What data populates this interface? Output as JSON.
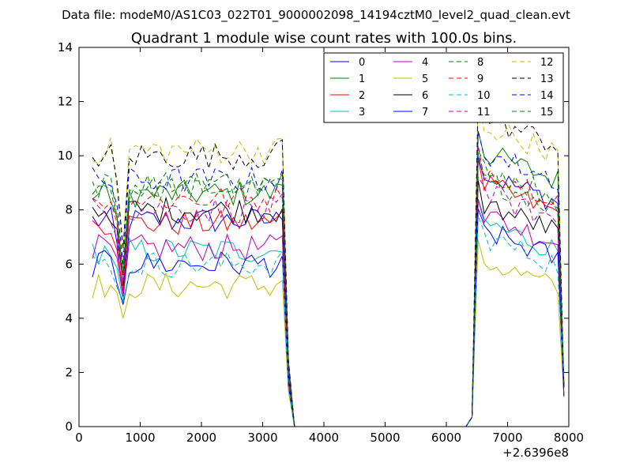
{
  "chart_data": {
    "type": "line",
    "suptitle": "Data file: modeM0/AS1C03_022T01_9000002098_14194cztM0_level2_quad_clean.evt",
    "title": "Quadrant 1 module wise count rates with 100.0s bins.",
    "xlabel": "",
    "ylabel": "",
    "x_offset_label": "+2.6396e8",
    "xlim": [
      0,
      8000
    ],
    "ylim": [
      0,
      14
    ],
    "xticks": [
      0,
      1000,
      2000,
      3000,
      4000,
      5000,
      6000,
      7000,
      8000
    ],
    "xtick_labels": [
      "0",
      "1000",
      "2000",
      "3000",
      "4000",
      "5000",
      "6000",
      "7000",
      "8000"
    ],
    "yticks": [
      0,
      2,
      4,
      6,
      8,
      10,
      12,
      14
    ],
    "ytick_labels": [
      "0",
      "2",
      "4",
      "6",
      "8",
      "10",
      "12",
      "14"
    ],
    "grid": false,
    "legend_position": "top-right",
    "legend_columns": 4,
    "x": [
      220,
      320,
      420,
      520,
      620,
      720,
      820,
      920,
      1020,
      1120,
      1220,
      1320,
      1420,
      1520,
      1620,
      1720,
      1820,
      1920,
      2020,
      2120,
      2220,
      2320,
      2420,
      2520,
      2620,
      2720,
      2820,
      2920,
      3020,
      3120,
      3220,
      3320,
      3420,
      3520,
      3620,
      3720,
      3820,
      3920,
      4020,
      4120,
      4220,
      4320,
      4420,
      4520,
      4620,
      4720,
      4820,
      4920,
      5020,
      5120,
      5220,
      5320,
      5420,
      5520,
      5620,
      5720,
      5820,
      5920,
      6020,
      6120,
      6220,
      6320,
      6420,
      6520,
      6620,
      6720,
      6820,
      6920,
      7020,
      7120,
      7220,
      7320,
      7420,
      7520,
      7620,
      7720,
      7820,
      7920
    ],
    "series": [
      {
        "name": "0",
        "color": "#0000ff",
        "dashed": false,
        "base": 7.4,
        "dip": 4.8,
        "post": 9.4
      },
      {
        "name": "1",
        "color": "#008000",
        "dashed": false,
        "base": 8.6,
        "dip": 5.6,
        "post": 10.2
      },
      {
        "name": "2",
        "color": "#ff0000",
        "dashed": false,
        "base": 7.5,
        "dip": 5.0,
        "post": 9.0
      },
      {
        "name": "3",
        "color": "#00bfbf",
        "dashed": false,
        "base": 6.3,
        "dip": 4.6,
        "post": 7.6
      },
      {
        "name": "4",
        "color": "#bf00bf",
        "dashed": false,
        "base": 6.6,
        "dip": 4.8,
        "post": 7.9
      },
      {
        "name": "5",
        "color": "#bfbf00",
        "dashed": false,
        "base": 5.2,
        "dip": 4.0,
        "post": 6.2
      },
      {
        "name": "6",
        "color": "#000000",
        "dashed": false,
        "base": 7.8,
        "dip": 5.2,
        "post": 8.3
      },
      {
        "name": "7",
        "color": "#0000ff",
        "dashed": false,
        "base": 6.0,
        "dip": 4.5,
        "post": 7.3
      },
      {
        "name": "8",
        "color": "#008000",
        "dashed": true,
        "base": 8.8,
        "dip": 5.8,
        "post": 9.2
      },
      {
        "name": "9",
        "color": "#ff0000",
        "dashed": true,
        "base": 8.2,
        "dip": 5.4,
        "post": 9.6
      },
      {
        "name": "10",
        "color": "#00bfbf",
        "dashed": true,
        "base": 6.0,
        "dip": 4.6,
        "post": 7.1
      },
      {
        "name": "11",
        "color": "#bf00bf",
        "dashed": true,
        "base": 8.0,
        "dip": 5.3,
        "post": 8.7
      },
      {
        "name": "12",
        "color": "#bfbf00",
        "dashed": true,
        "base": 10.0,
        "dip": 6.4,
        "post": 11.2
      },
      {
        "name": "13",
        "color": "#000000",
        "dashed": true,
        "base": 10.0,
        "dip": 6.6,
        "post": 11.5
      },
      {
        "name": "14",
        "color": "#0000ff",
        "dashed": true,
        "base": 9.1,
        "dip": 6.0,
        "post": 10.2
      },
      {
        "name": "15",
        "color": "#008000",
        "dashed": true,
        "base": 8.7,
        "dip": 5.7,
        "post": 9.6
      }
    ]
  }
}
